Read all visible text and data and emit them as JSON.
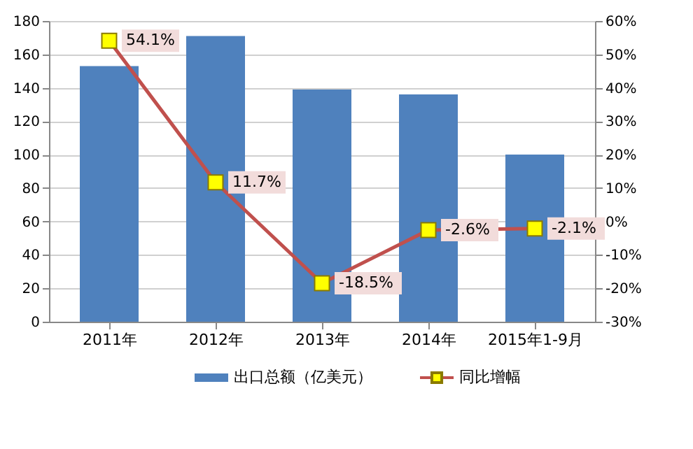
{
  "chart_data": {
    "type": "bar",
    "categories": [
      "2011年",
      "2012年",
      "2013年",
      "2014年",
      "2015年1-9月"
    ],
    "series": [
      {
        "name": "出口总额（亿美元）",
        "color": "#4f81bd",
        "values": [
          153,
          171,
          139,
          136,
          100
        ]
      },
      {
        "name": "同比增幅",
        "type": "line",
        "axis": "y2",
        "color": "#c0504d",
        "marker": "square",
        "values": [
          54.1,
          11.7,
          -18.5,
          -2.6,
          -2.1
        ],
        "value_labels": [
          "54.1%",
          "11.7%",
          "-18.5%",
          "-2.6%",
          "-2.1%"
        ]
      }
    ],
    "ylim": [
      0,
      180
    ],
    "yticks": [
      0,
      20,
      40,
      60,
      80,
      100,
      120,
      140,
      160,
      180
    ],
    "y2lim": [
      -30,
      60
    ],
    "y2ticks": [
      {
        "value": 60,
        "label": "60%"
      },
      {
        "value": 50,
        "label": "50%"
      },
      {
        "value": 40,
        "label": "40%"
      },
      {
        "value": 30,
        "label": "30%"
      },
      {
        "value": 20,
        "label": "20%"
      },
      {
        "value": 10,
        "label": "10%"
      },
      {
        "value": 0,
        "label": "0%"
      },
      {
        "value": -10,
        "label": "-10%"
      },
      {
        "value": -20,
        "label": "-20%"
      },
      {
        "value": -30,
        "label": "-30%"
      }
    ],
    "grid": "y",
    "legend": "bottom"
  }
}
